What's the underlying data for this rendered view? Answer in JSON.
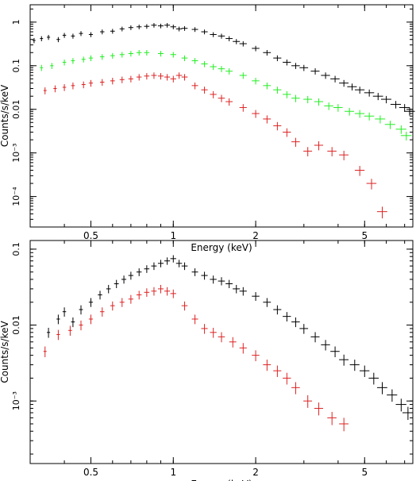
{
  "chart_data": [
    {
      "type": "scatter",
      "panel": "top",
      "xlabel": "Energy (keV)",
      "ylabel": "Counts/s/keV",
      "xscale": "log",
      "yscale": "log",
      "xlim": [
        0.3,
        7.5
      ],
      "ylim": [
        2e-05,
        2.5
      ],
      "x_ticks": [
        0.5,
        1,
        2,
        5
      ],
      "x_tick_labels": [
        "0.5",
        "1",
        "2",
        "5"
      ],
      "y_ticks": [
        0.0001,
        0.001,
        0.01,
        0.1,
        1
      ],
      "y_tick_labels": [
        "10⁻⁴",
        "10⁻³",
        "0.01",
        "0.1",
        "1"
      ],
      "grid": false,
      "series": [
        {
          "color": "#000000",
          "points": [
            [
              0.31,
              0.38
            ],
            [
              0.33,
              0.42
            ],
            [
              0.35,
              0.45
            ],
            [
              0.38,
              0.4
            ],
            [
              0.4,
              0.5
            ],
            [
              0.43,
              0.48
            ],
            [
              0.46,
              0.55
            ],
            [
              0.5,
              0.52
            ],
            [
              0.55,
              0.6
            ],
            [
              0.6,
              0.62
            ],
            [
              0.65,
              0.7
            ],
            [
              0.7,
              0.75
            ],
            [
              0.75,
              0.78
            ],
            [
              0.8,
              0.8
            ],
            [
              0.85,
              0.85
            ],
            [
              0.9,
              0.82
            ],
            [
              0.95,
              0.85
            ],
            [
              1.0,
              0.78
            ],
            [
              1.05,
              0.7
            ],
            [
              1.1,
              0.72
            ],
            [
              1.2,
              0.68
            ],
            [
              1.3,
              0.6
            ],
            [
              1.4,
              0.52
            ],
            [
              1.5,
              0.48
            ],
            [
              1.6,
              0.42
            ],
            [
              1.7,
              0.36
            ],
            [
              1.8,
              0.32
            ],
            [
              2.0,
              0.25
            ],
            [
              2.2,
              0.2
            ],
            [
              2.4,
              0.15
            ],
            [
              2.6,
              0.12
            ],
            [
              2.8,
              0.1
            ],
            [
              3.0,
              0.09
            ],
            [
              3.3,
              0.075
            ],
            [
              3.6,
              0.06
            ],
            [
              3.9,
              0.05
            ],
            [
              4.2,
              0.04
            ],
            [
              4.5,
              0.033
            ],
            [
              4.8,
              0.028
            ],
            [
              5.2,
              0.024
            ],
            [
              5.6,
              0.02
            ],
            [
              6.0,
              0.017
            ],
            [
              6.5,
              0.013
            ],
            [
              7.0,
              0.011
            ],
            [
              7.3,
              0.009
            ]
          ]
        },
        {
          "color": "#22ee22",
          "points": [
            [
              0.33,
              0.09
            ],
            [
              0.36,
              0.1
            ],
            [
              0.4,
              0.12
            ],
            [
              0.43,
              0.13
            ],
            [
              0.47,
              0.14
            ],
            [
              0.5,
              0.15
            ],
            [
              0.55,
              0.16
            ],
            [
              0.6,
              0.17
            ],
            [
              0.65,
              0.18
            ],
            [
              0.7,
              0.19
            ],
            [
              0.75,
              0.2
            ],
            [
              0.8,
              0.2
            ],
            [
              0.9,
              0.19
            ],
            [
              1.0,
              0.18
            ],
            [
              1.1,
              0.15
            ],
            [
              1.2,
              0.13
            ],
            [
              1.3,
              0.11
            ],
            [
              1.4,
              0.095
            ],
            [
              1.5,
              0.085
            ],
            [
              1.6,
              0.075
            ],
            [
              1.8,
              0.06
            ],
            [
              2.0,
              0.045
            ],
            [
              2.2,
              0.035
            ],
            [
              2.4,
              0.028
            ],
            [
              2.6,
              0.022
            ],
            [
              2.8,
              0.018
            ],
            [
              3.1,
              0.017
            ],
            [
              3.4,
              0.015
            ],
            [
              3.7,
              0.012
            ],
            [
              4.0,
              0.011
            ],
            [
              4.4,
              0.009
            ],
            [
              4.8,
              0.008
            ],
            [
              5.2,
              0.007
            ],
            [
              5.7,
              0.006
            ],
            [
              6.2,
              0.0045
            ],
            [
              6.8,
              0.0035
            ],
            [
              7.1,
              0.0025
            ]
          ]
        },
        {
          "color": "#dd2222",
          "points": [
            [
              0.34,
              0.027
            ],
            [
              0.37,
              0.03
            ],
            [
              0.4,
              0.032
            ],
            [
              0.43,
              0.035
            ],
            [
              0.47,
              0.037
            ],
            [
              0.5,
              0.04
            ],
            [
              0.55,
              0.042
            ],
            [
              0.6,
              0.045
            ],
            [
              0.65,
              0.048
            ],
            [
              0.7,
              0.05
            ],
            [
              0.75,
              0.055
            ],
            [
              0.8,
              0.058
            ],
            [
              0.85,
              0.06
            ],
            [
              0.9,
              0.058
            ],
            [
              0.95,
              0.055
            ],
            [
              1.0,
              0.05
            ],
            [
              1.05,
              0.06
            ],
            [
              1.1,
              0.055
            ],
            [
              1.2,
              0.035
            ],
            [
              1.3,
              0.028
            ],
            [
              1.4,
              0.022
            ],
            [
              1.5,
              0.018
            ],
            [
              1.6,
              0.015
            ],
            [
              1.8,
              0.011
            ],
            [
              2.0,
              0.008
            ],
            [
              2.2,
              0.006
            ],
            [
              2.4,
              0.0042
            ],
            [
              2.6,
              0.003
            ],
            [
              2.8,
              0.0018
            ],
            [
              3.1,
              0.0011
            ],
            [
              3.4,
              0.0015
            ],
            [
              3.8,
              0.0011
            ],
            [
              4.2,
              0.0009
            ],
            [
              4.8,
              0.0004
            ],
            [
              5.3,
              0.0002
            ],
            [
              5.8,
              4.5e-05
            ]
          ]
        }
      ]
    },
    {
      "type": "scatter",
      "panel": "bottom",
      "xlabel": "Energy (keV)",
      "ylabel": "Counts/s/keV",
      "xscale": "log",
      "yscale": "log",
      "xlim": [
        0.3,
        7.5
      ],
      "ylim": [
        0.00015,
        0.13
      ],
      "x_ticks": [
        0.5,
        1,
        2,
        5
      ],
      "x_tick_labels": [
        "0.5",
        "1",
        "2",
        "5"
      ],
      "y_ticks": [
        0.001,
        0.01,
        0.1
      ],
      "y_tick_labels": [
        "10⁻³",
        "0.01",
        "0.1"
      ],
      "grid": false,
      "series": [
        {
          "color": "#000000",
          "points": [
            [
              0.35,
              0.008
            ],
            [
              0.38,
              0.012
            ],
            [
              0.4,
              0.015
            ],
            [
              0.43,
              0.011
            ],
            [
              0.46,
              0.016
            ],
            [
              0.5,
              0.02
            ],
            [
              0.54,
              0.025
            ],
            [
              0.58,
              0.03
            ],
            [
              0.62,
              0.035
            ],
            [
              0.66,
              0.04
            ],
            [
              0.7,
              0.045
            ],
            [
              0.75,
              0.05
            ],
            [
              0.8,
              0.055
            ],
            [
              0.85,
              0.06
            ],
            [
              0.9,
              0.065
            ],
            [
              0.95,
              0.07
            ],
            [
              1.0,
              0.075
            ],
            [
              1.05,
              0.065
            ],
            [
              1.1,
              0.06
            ],
            [
              1.2,
              0.05
            ],
            [
              1.3,
              0.045
            ],
            [
              1.4,
              0.04
            ],
            [
              1.5,
              0.038
            ],
            [
              1.6,
              0.035
            ],
            [
              1.7,
              0.03
            ],
            [
              1.8,
              0.028
            ],
            [
              2.0,
              0.024
            ],
            [
              2.2,
              0.02
            ],
            [
              2.4,
              0.016
            ],
            [
              2.6,
              0.013
            ],
            [
              2.8,
              0.011
            ],
            [
              3.0,
              0.009
            ],
            [
              3.3,
              0.007
            ],
            [
              3.6,
              0.0055
            ],
            [
              3.9,
              0.0045
            ],
            [
              4.2,
              0.0035
            ],
            [
              4.6,
              0.003
            ],
            [
              5.0,
              0.0025
            ],
            [
              5.4,
              0.002
            ],
            [
              5.8,
              0.0015
            ],
            [
              6.3,
              0.0012
            ],
            [
              6.8,
              0.0009
            ],
            [
              7.2,
              0.0007
            ]
          ]
        },
        {
          "color": "#dd2222",
          "points": [
            [
              0.34,
              0.0045
            ],
            [
              0.38,
              0.0075
            ],
            [
              0.42,
              0.0085
            ],
            [
              0.46,
              0.01
            ],
            [
              0.5,
              0.012
            ],
            [
              0.55,
              0.015
            ],
            [
              0.6,
              0.018
            ],
            [
              0.65,
              0.02
            ],
            [
              0.7,
              0.022
            ],
            [
              0.75,
              0.025
            ],
            [
              0.8,
              0.027
            ],
            [
              0.85,
              0.028
            ],
            [
              0.9,
              0.03
            ],
            [
              0.95,
              0.028
            ],
            [
              1.0,
              0.026
            ],
            [
              1.1,
              0.018
            ],
            [
              1.2,
              0.012
            ],
            [
              1.3,
              0.009
            ],
            [
              1.4,
              0.008
            ],
            [
              1.5,
              0.007
            ],
            [
              1.65,
              0.006
            ],
            [
              1.8,
              0.005
            ],
            [
              2.0,
              0.004
            ],
            [
              2.2,
              0.003
            ],
            [
              2.4,
              0.0025
            ],
            [
              2.6,
              0.002
            ],
            [
              2.8,
              0.0015
            ],
            [
              3.1,
              0.001
            ],
            [
              3.4,
              0.0008
            ],
            [
              3.8,
              0.0006
            ],
            [
              4.2,
              0.0005
            ]
          ]
        }
      ]
    }
  ]
}
